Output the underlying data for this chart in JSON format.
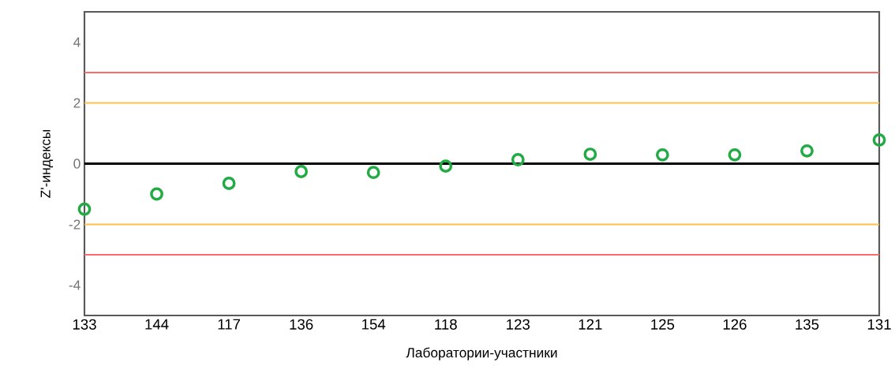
{
  "chart_data": {
    "type": "scatter",
    "xlabel": "Лаборатории-участники",
    "ylabel": "Z'-индексы",
    "categories": [
      "133",
      "144",
      "117",
      "136",
      "154",
      "118",
      "123",
      "121",
      "125",
      "126",
      "135",
      "131"
    ],
    "values": [
      -1.5,
      -1.0,
      -0.65,
      -0.26,
      -0.29,
      -0.08,
      0.13,
      0.31,
      0.29,
      0.29,
      0.42,
      0.78
    ],
    "color": "#22aa44",
    "marker": "circle",
    "ylim": [
      -5,
      5
    ],
    "yticks": [
      -4,
      -2,
      0,
      2,
      4
    ],
    "grid": false,
    "ref_lines": [
      {
        "axis": "y",
        "value": 3,
        "color": "#ff6b6b"
      },
      {
        "axis": "y",
        "value": 2,
        "color": "#ffc04d"
      },
      {
        "axis": "y",
        "value": 0,
        "color": "#000000"
      },
      {
        "axis": "y",
        "value": -2,
        "color": "#ffc04d"
      },
      {
        "axis": "y",
        "value": -3,
        "color": "#ff6b6b"
      }
    ]
  }
}
